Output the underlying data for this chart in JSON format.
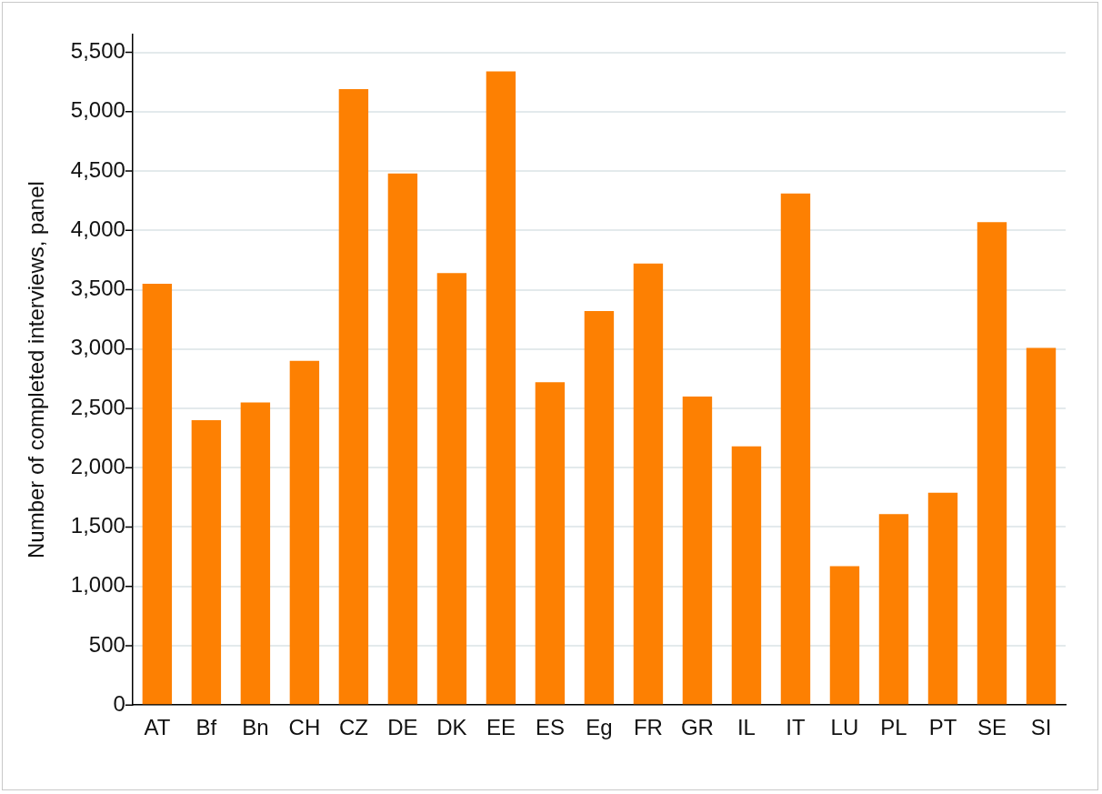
{
  "chart_data": {
    "type": "bar",
    "ylabel": "Number of completed interviews, panel",
    "categories": [
      "AT",
      "Bf",
      "Bn",
      "CH",
      "CZ",
      "DE",
      "DK",
      "EE",
      "ES",
      "Eg",
      "FR",
      "GR",
      "IL",
      "IT",
      "LU",
      "PL",
      "PT",
      "SE",
      "SI"
    ],
    "values": [
      3550,
      2400,
      2550,
      2900,
      5190,
      4480,
      3640,
      5340,
      2720,
      3320,
      3720,
      2600,
      2180,
      4310,
      1170,
      1610,
      1790,
      4070,
      3010
    ],
    "color": "#fd8002",
    "ylim": [
      0,
      5650
    ],
    "yticks": [
      0,
      500,
      {
        "value": 1000,
        "label": "1,000"
      },
      {
        "value": 1500,
        "label": "1,500"
      },
      {
        "value": 2000,
        "label": "2,000"
      },
      {
        "value": 2500,
        "label": "2,500"
      },
      {
        "value": 3000,
        "label": "3,000"
      },
      {
        "value": 3500,
        "label": "3,500"
      },
      {
        "value": 4000,
        "label": "4,000"
      },
      {
        "value": 4500,
        "label": "4,500"
      },
      {
        "value": 5000,
        "label": "5,000"
      },
      {
        "value": 5500,
        "label": "5,500"
      }
    ],
    "grid": "y",
    "legend": false
  }
}
